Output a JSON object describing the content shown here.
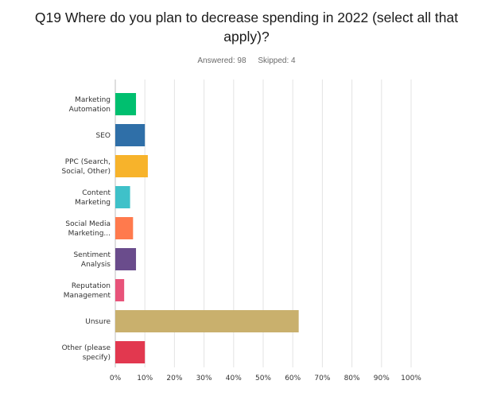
{
  "chart_data": {
    "type": "bar",
    "orientation": "horizontal",
    "title_lines": [
      "Q19 Where do you plan to decrease spending in 2022 (select all that",
      "apply)?"
    ],
    "answered": "Answered: 98",
    "skipped": "Skipped: 4",
    "categories": [
      [
        "Marketing",
        "Automation"
      ],
      [
        "SEO"
      ],
      [
        "PPC (Search,",
        "Social, Other)"
      ],
      [
        "Content",
        "Marketing"
      ],
      [
        "Social Media",
        "Marketing..."
      ],
      [
        "Sentiment",
        "Analysis"
      ],
      [
        "Reputation",
        "Management"
      ],
      [
        "Unsure"
      ],
      [
        "Other (please",
        "specify)"
      ]
    ],
    "values": [
      7,
      10,
      11,
      5,
      6,
      7,
      3,
      62,
      10
    ],
    "colors": [
      "#00bf6f",
      "#2f6fa8",
      "#f7b32b",
      "#3fc1c9",
      "#ff7a4d",
      "#6a4c8c",
      "#e8537a",
      "#c9b06d",
      "#e2384f"
    ],
    "xlim": [
      0,
      100
    ],
    "xticks": [
      "0%",
      "10%",
      "20%",
      "30%",
      "40%",
      "50%",
      "60%",
      "70%",
      "80%",
      "90%",
      "100%"
    ],
    "grid": true
  }
}
